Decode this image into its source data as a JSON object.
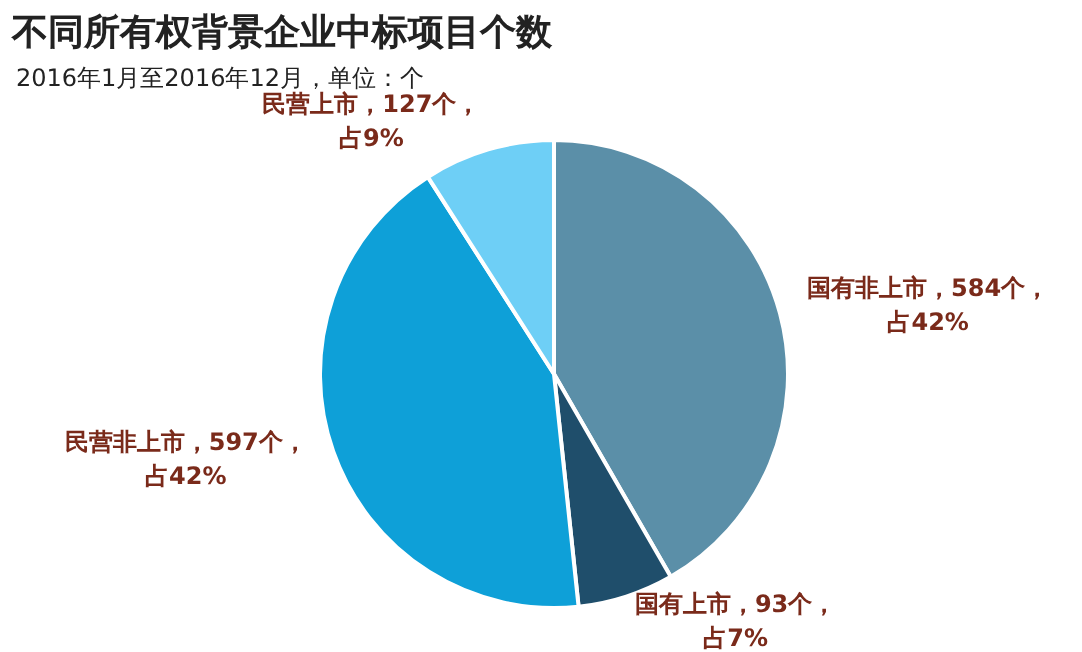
{
  "chart_data": {
    "type": "pie",
    "title": "不同所有权背景企业中标项目个数",
    "subtitle": "2016年1月至2016年12月，单位：个",
    "categories": [
      "国有非上市",
      "国有上市",
      "民营非上市",
      "民营上市"
    ],
    "values": [
      584,
      93,
      597,
      127
    ],
    "colors": [
      "#5b8fa8",
      "#1f4e6b",
      "#0ea0d8",
      "#6ecff6"
    ],
    "value_labels": [
      "，584个，占42%",
      "，93个，占7%",
      "，597个，占42%",
      "，127个，占9%"
    ],
    "legend": false
  }
}
